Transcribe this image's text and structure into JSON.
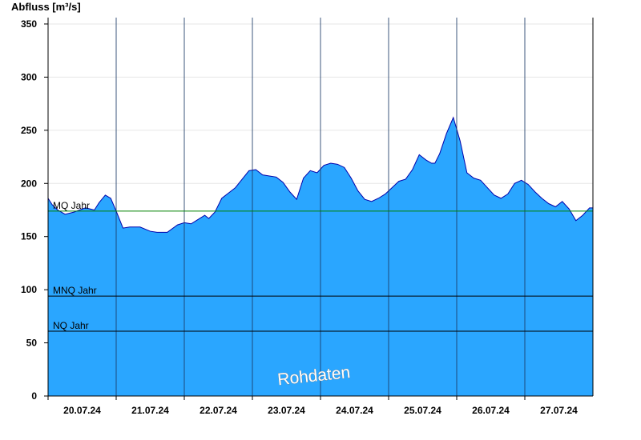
{
  "chart_data": {
    "type": "area",
    "ylabel": "Abfluss [m³/s]",
    "ylim": [
      0,
      356
    ],
    "yticks": [
      0,
      50,
      100,
      150,
      200,
      250,
      300,
      350
    ],
    "xlim": [
      0,
      8
    ],
    "day_labels": [
      "20.07.24",
      "21.07.24",
      "22.07.24",
      "23.07.24",
      "24.07.24",
      "25.07.24",
      "26.07.24",
      "27.07.24"
    ],
    "grid": true,
    "colors": {
      "fill": "#2aa6ff",
      "outline": "#0000aa",
      "mq": "#008000",
      "ref": "#000000"
    },
    "reference_lines": [
      {
        "label": "MQ Jahr",
        "value": 174
      },
      {
        "label": "MNQ Jahr",
        "value": 94
      },
      {
        "label": "NQ Jahr",
        "value": 61
      }
    ],
    "series": [
      {
        "x": [
          0,
          0.06,
          0.14,
          0.25,
          0.38,
          0.55,
          0.68,
          0.75,
          0.84,
          0.92,
          1.0,
          1.05,
          1.1,
          1.2,
          1.35,
          1.5,
          1.6,
          1.75,
          1.9,
          2.0,
          2.1,
          2.25,
          2.3,
          2.36,
          2.45,
          2.55,
          2.65,
          2.75,
          2.85,
          2.95,
          3.05,
          3.15,
          3.25,
          3.35,
          3.45,
          3.55,
          3.65,
          3.75,
          3.85,
          3.95,
          4.05,
          4.15,
          4.25,
          4.35,
          4.45,
          4.55,
          4.65,
          4.75,
          4.85,
          4.95,
          5.05,
          5.15,
          5.25,
          5.35,
          5.45,
          5.55,
          5.63,
          5.68,
          5.75,
          5.85,
          5.95,
          6.05,
          6.15,
          6.25,
          6.35,
          6.45,
          6.55,
          6.65,
          6.75,
          6.85,
          6.95,
          7.05,
          7.15,
          7.25,
          7.35,
          7.45,
          7.55,
          7.65,
          7.75,
          7.85,
          7.95,
          8.0
        ],
        "values": [
          186,
          180,
          175,
          171,
          173,
          177,
          175,
          182,
          189,
          186,
          174,
          166,
          158,
          159,
          159,
          155,
          154,
          154,
          161,
          163,
          162,
          168,
          170,
          167,
          173,
          186,
          191,
          196,
          204,
          212,
          213,
          208,
          207,
          206,
          201,
          192,
          185,
          205,
          212,
          210,
          217,
          219,
          218,
          215,
          205,
          193,
          185,
          183,
          186,
          190,
          196,
          202,
          204,
          213,
          227,
          222,
          219,
          219,
          228,
          247,
          262,
          240,
          210,
          205,
          203,
          196,
          189,
          186,
          190,
          200,
          203,
          199,
          192,
          186,
          181,
          178,
          183,
          176,
          165,
          170,
          177,
          177
        ]
      }
    ]
  }
}
